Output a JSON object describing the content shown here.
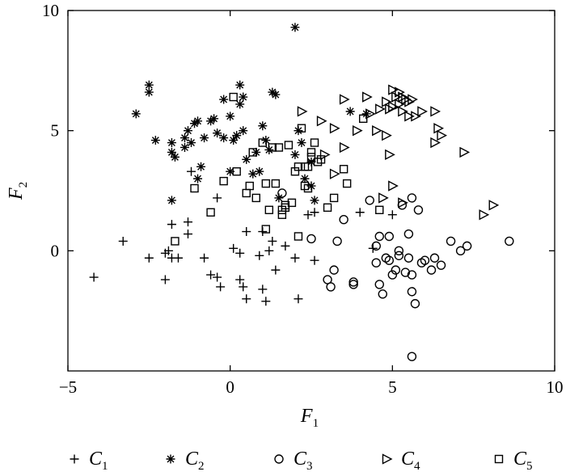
{
  "chart_data": {
    "type": "scatter",
    "xlabel": "F",
    "xlabel_sub": "1",
    "ylabel": "F",
    "ylabel_sub": "2",
    "xlim": [
      -5,
      10
    ],
    "ylim": [
      -5,
      10
    ],
    "x_ticks": [
      -5,
      0,
      5,
      10
    ],
    "y_ticks": [
      0,
      5,
      10
    ],
    "x_tick_labels": [
      "−5",
      "0",
      "5",
      "10"
    ],
    "y_tick_labels": [
      "0",
      "5",
      "10"
    ],
    "grid": false,
    "legend_position": "bottom",
    "series": [
      {
        "name": "C",
        "sub": "1",
        "marker": "plus",
        "points": [
          [
            -4.2,
            -1.1
          ],
          [
            -3.3,
            0.4
          ],
          [
            -2.5,
            -0.3
          ],
          [
            -2.0,
            -1.2
          ],
          [
            -2.0,
            -0.1
          ],
          [
            -1.9,
            0.0
          ],
          [
            -1.8,
            -0.3
          ],
          [
            -1.8,
            1.1
          ],
          [
            -1.6,
            -0.3
          ],
          [
            -1.3,
            0.7
          ],
          [
            -1.3,
            1.2
          ],
          [
            -1.2,
            3.3
          ],
          [
            -0.8,
            -0.3
          ],
          [
            -0.6,
            -1.0
          ],
          [
            -0.4,
            -1.1
          ],
          [
            -0.3,
            -1.5
          ],
          [
            -0.4,
            2.2
          ],
          [
            0.1,
            0.1
          ],
          [
            0.3,
            -0.1
          ],
          [
            0.3,
            -1.2
          ],
          [
            0.4,
            -1.5
          ],
          [
            0.5,
            0.8
          ],
          [
            0.5,
            -2.0
          ],
          [
            0.9,
            -0.2
          ],
          [
            1.0,
            -1.6
          ],
          [
            1.0,
            0.8
          ],
          [
            1.1,
            -2.1
          ],
          [
            1.2,
            0.0
          ],
          [
            1.3,
            0.4
          ],
          [
            1.4,
            -0.8
          ],
          [
            1.7,
            0.2
          ],
          [
            2.0,
            -0.3
          ],
          [
            2.1,
            -2.0
          ],
          [
            2.4,
            1.5
          ],
          [
            2.6,
            -0.4
          ],
          [
            2.6,
            1.6
          ],
          [
            4.0,
            1.6
          ],
          [
            4.4,
            0.1
          ],
          [
            5.0,
            1.5
          ]
        ]
      },
      {
        "name": "C",
        "sub": "2",
        "marker": "star",
        "points": [
          [
            -2.9,
            5.7
          ],
          [
            -2.5,
            6.6
          ],
          [
            -2.5,
            6.9
          ],
          [
            -2.3,
            4.6
          ],
          [
            -1.8,
            2.1
          ],
          [
            -1.8,
            4.1
          ],
          [
            -1.8,
            4.5
          ],
          [
            -1.7,
            3.9
          ],
          [
            -1.4,
            4.7
          ],
          [
            -1.4,
            4.3
          ],
          [
            -1.3,
            5.0
          ],
          [
            -1.2,
            4.5
          ],
          [
            -1.1,
            5.3
          ],
          [
            -1.0,
            3.0
          ],
          [
            -1.0,
            5.4
          ],
          [
            -0.9,
            3.5
          ],
          [
            -0.8,
            4.7
          ],
          [
            -0.6,
            5.4
          ],
          [
            -0.5,
            5.5
          ],
          [
            -0.4,
            4.9
          ],
          [
            -0.2,
            4.7
          ],
          [
            -0.2,
            6.3
          ],
          [
            0.0,
            5.6
          ],
          [
            0.0,
            3.3
          ],
          [
            0.1,
            4.6
          ],
          [
            0.2,
            4.8
          ],
          [
            0.3,
            6.1
          ],
          [
            0.3,
            6.9
          ],
          [
            0.4,
            5.0
          ],
          [
            0.4,
            6.4
          ],
          [
            0.5,
            3.8
          ],
          [
            0.7,
            3.2
          ],
          [
            0.8,
            4.1
          ],
          [
            0.9,
            3.3
          ],
          [
            1.0,
            5.2
          ],
          [
            1.1,
            4.6
          ],
          [
            1.2,
            4.2
          ],
          [
            1.3,
            6.6
          ],
          [
            1.4,
            6.5
          ],
          [
            1.5,
            2.2
          ],
          [
            2.0,
            4.0
          ],
          [
            2.1,
            5.0
          ],
          [
            2.2,
            4.5
          ],
          [
            2.3,
            3.0
          ],
          [
            2.5,
            2.7
          ],
          [
            2.5,
            3.7
          ],
          [
            2.6,
            2.1
          ],
          [
            3.7,
            5.8
          ],
          [
            4.2,
            5.7
          ],
          [
            2.0,
            9.3
          ]
        ]
      },
      {
        "name": "C",
        "sub": "3",
        "marker": "circle",
        "points": [
          [
            1.6,
            2.4
          ],
          [
            2.5,
            0.5
          ],
          [
            3.0,
            -1.2
          ],
          [
            3.1,
            -1.5
          ],
          [
            3.2,
            -0.8
          ],
          [
            3.3,
            0.4
          ],
          [
            3.5,
            1.3
          ],
          [
            3.8,
            -1.4
          ],
          [
            3.8,
            -1.3
          ],
          [
            4.3,
            2.1
          ],
          [
            4.5,
            -0.5
          ],
          [
            4.5,
            0.2
          ],
          [
            4.6,
            -1.4
          ],
          [
            4.6,
            0.6
          ],
          [
            4.7,
            -1.8
          ],
          [
            4.8,
            -0.3
          ],
          [
            4.9,
            -0.4
          ],
          [
            4.9,
            0.6
          ],
          [
            5.0,
            -1.0
          ],
          [
            5.1,
            -0.8
          ],
          [
            5.2,
            -0.2
          ],
          [
            5.2,
            0.0
          ],
          [
            5.3,
            1.9
          ],
          [
            5.4,
            -0.9
          ],
          [
            5.5,
            -0.3
          ],
          [
            5.5,
            0.7
          ],
          [
            5.6,
            -1.0
          ],
          [
            5.6,
            -1.7
          ],
          [
            5.6,
            2.2
          ],
          [
            5.7,
            -2.2
          ],
          [
            5.8,
            1.7
          ],
          [
            5.9,
            -0.5
          ],
          [
            6.0,
            -0.4
          ],
          [
            6.2,
            -0.8
          ],
          [
            6.3,
            -0.3
          ],
          [
            6.5,
            -0.6
          ],
          [
            6.8,
            0.4
          ],
          [
            7.1,
            0.0
          ],
          [
            7.3,
            0.2
          ],
          [
            8.6,
            0.4
          ],
          [
            5.6,
            -4.4
          ]
        ]
      },
      {
        "name": "C",
        "sub": "4",
        "marker": "triangle-right",
        "points": [
          [
            2.2,
            5.8
          ],
          [
            2.8,
            5.4
          ],
          [
            3.2,
            5.1
          ],
          [
            3.5,
            6.3
          ],
          [
            3.5,
            4.3
          ],
          [
            3.9,
            5.0
          ],
          [
            4.2,
            6.4
          ],
          [
            4.3,
            5.7
          ],
          [
            4.5,
            5.0
          ],
          [
            4.6,
            5.9
          ],
          [
            4.8,
            6.2
          ],
          [
            4.8,
            4.8
          ],
          [
            4.9,
            4.0
          ],
          [
            4.9,
            5.9
          ],
          [
            5.0,
            6.0
          ],
          [
            5.0,
            6.7
          ],
          [
            5.1,
            6.4
          ],
          [
            5.2,
            6.6
          ],
          [
            5.2,
            6.1
          ],
          [
            5.3,
            6.4
          ],
          [
            5.3,
            5.8
          ],
          [
            5.4,
            6.3
          ],
          [
            5.5,
            6.2
          ],
          [
            5.5,
            5.6
          ],
          [
            5.6,
            6.3
          ],
          [
            5.7,
            5.6
          ],
          [
            5.9,
            5.8
          ],
          [
            6.3,
            5.8
          ],
          [
            6.3,
            4.5
          ],
          [
            6.4,
            5.1
          ],
          [
            6.5,
            4.8
          ],
          [
            7.2,
            4.1
          ],
          [
            5.0,
            2.7
          ],
          [
            5.3,
            2.0
          ],
          [
            3.2,
            3.2
          ],
          [
            2.9,
            4.0
          ],
          [
            7.8,
            1.5
          ],
          [
            8.1,
            1.9
          ],
          [
            4.7,
            2.2
          ]
        ]
      },
      {
        "name": "C",
        "sub": "5",
        "marker": "square",
        "points": [
          [
            -1.7,
            0.4
          ],
          [
            -1.1,
            2.6
          ],
          [
            -0.6,
            1.6
          ],
          [
            -0.2,
            2.9
          ],
          [
            0.1,
            6.4
          ],
          [
            0.2,
            3.3
          ],
          [
            0.5,
            2.4
          ],
          [
            0.6,
            2.7
          ],
          [
            0.7,
            4.1
          ],
          [
            0.8,
            2.2
          ],
          [
            1.0,
            4.5
          ],
          [
            1.1,
            0.9
          ],
          [
            1.1,
            2.8
          ],
          [
            1.2,
            1.7
          ],
          [
            1.3,
            4.3
          ],
          [
            1.4,
            2.8
          ],
          [
            1.5,
            4.3
          ],
          [
            1.6,
            1.7
          ],
          [
            1.6,
            1.5
          ],
          [
            1.7,
            1.8
          ],
          [
            1.7,
            1.9
          ],
          [
            1.8,
            4.4
          ],
          [
            1.9,
            2.0
          ],
          [
            2.0,
            3.3
          ],
          [
            2.1,
            3.5
          ],
          [
            2.1,
            0.6
          ],
          [
            2.2,
            5.1
          ],
          [
            2.3,
            3.5
          ],
          [
            2.3,
            2.7
          ],
          [
            2.4,
            2.6
          ],
          [
            2.4,
            3.5
          ],
          [
            2.5,
            3.9
          ],
          [
            2.5,
            4.1
          ],
          [
            2.6,
            4.5
          ],
          [
            2.7,
            3.7
          ],
          [
            2.8,
            3.8
          ],
          [
            3.0,
            1.8
          ],
          [
            3.2,
            2.2
          ],
          [
            3.5,
            3.4
          ],
          [
            3.6,
            2.8
          ],
          [
            4.1,
            5.5
          ],
          [
            4.6,
            1.7
          ]
        ]
      }
    ]
  }
}
